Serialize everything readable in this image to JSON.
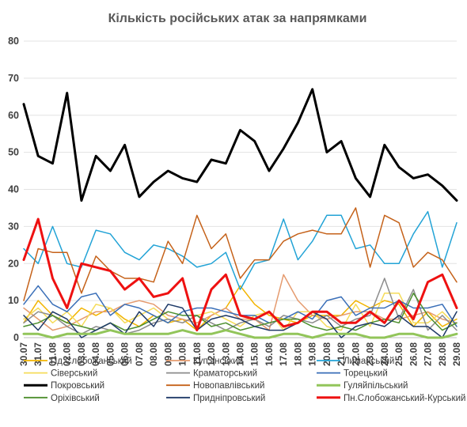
{
  "chart_data": {
    "type": "line",
    "title": "Кількість російських атак за напрямками",
    "xlabel": "",
    "ylabel": "",
    "ylim": [
      0,
      80
    ],
    "yticks": [
      0,
      10,
      20,
      30,
      40,
      50,
      60,
      70,
      80
    ],
    "grid": "horizontal",
    "legend_position": "bottom",
    "x": [
      "30.07",
      "31.07",
      "01.08",
      "02.08",
      "03.08",
      "04.08",
      "05.08",
      "06.08",
      "07.08",
      "08.08",
      "09.08",
      "10.08",
      "11.08",
      "12.08",
      "13.08",
      "14.08",
      "15.08",
      "16.08",
      "17.08",
      "18.08",
      "19.08",
      "20.08",
      "21.08",
      "22.08",
      "23.08",
      "24.08",
      "25.08",
      "26.08",
      "27.08",
      "28.08",
      "29.08"
    ],
    "series": [
      {
        "name": "Пд.Слобожанський",
        "color": "#f2b400",
        "width": 1.5,
        "values": [
          4,
          10,
          6,
          4,
          8,
          6,
          8,
          5,
          3,
          6,
          4,
          5,
          2,
          6,
          8,
          14,
          9,
          6,
          5,
          4,
          6,
          6,
          6,
          10,
          8,
          10,
          9,
          3,
          7,
          3,
          5
        ]
      },
      {
        "name": "Куп'янський",
        "color": "#e59b6f",
        "width": 1.5,
        "values": [
          8,
          5,
          2,
          3,
          5,
          7,
          7,
          9,
          10,
          9,
          6,
          5,
          4,
          6,
          8,
          5,
          5,
          2,
          17,
          10,
          6,
          5,
          6,
          7,
          7,
          5,
          5,
          6,
          7,
          5,
          4
        ]
      },
      {
        "name": "Лиманський",
        "color": "#22a3d6",
        "width": 1.5,
        "values": [
          24,
          20,
          30,
          20,
          19,
          29,
          28,
          23,
          21,
          25,
          24,
          22,
          19,
          20,
          23,
          13,
          20,
          21,
          32,
          21,
          26,
          33,
          33,
          24,
          25,
          20,
          20,
          28,
          34,
          19,
          31
        ]
      },
      {
        "name": "Сіверський",
        "color": "#f5dc5a",
        "width": 1.5,
        "values": [
          5,
          8,
          4,
          7,
          3,
          9,
          8,
          4,
          6,
          8,
          5,
          4,
          6,
          7,
          5,
          3,
          6,
          7,
          2,
          7,
          7,
          3,
          2,
          9,
          3,
          12,
          12,
          4,
          4,
          7,
          3
        ]
      },
      {
        "name": "Краматорський",
        "color": "#8c8c8c",
        "width": 1.5,
        "values": [
          4,
          7,
          6,
          3,
          1,
          3,
          2,
          1,
          2,
          4,
          5,
          4,
          6,
          4,
          2,
          4,
          5,
          3,
          6,
          5,
          4,
          6,
          3,
          5,
          6,
          16,
          5,
          13,
          2,
          6,
          2
        ]
      },
      {
        "name": "Торецький",
        "color": "#3a6fb8",
        "width": 1.5,
        "values": [
          9,
          14,
          9,
          7,
          11,
          12,
          6,
          9,
          8,
          6,
          4,
          7,
          8,
          8,
          7,
          6,
          6,
          4,
          5,
          7,
          5,
          10,
          11,
          6,
          8,
          8,
          10,
          8,
          8,
          9,
          3
        ]
      },
      {
        "name": "Покровський",
        "color": "#000000",
        "width": 3,
        "values": [
          63,
          49,
          47,
          66,
          37,
          49,
          45,
          52,
          38,
          42,
          45,
          43,
          42,
          48,
          47,
          56,
          53,
          45,
          51,
          58,
          67,
          50,
          53,
          43,
          38,
          52,
          46,
          43,
          44,
          41,
          37
        ]
      },
      {
        "name": "Новопавлівський",
        "color": "#c5621a",
        "width": 1.5,
        "values": [
          10,
          24,
          23,
          23,
          12,
          22,
          18,
          16,
          16,
          15,
          26,
          20,
          33,
          24,
          28,
          16,
          21,
          21,
          26,
          28,
          29,
          28,
          28,
          35,
          19,
          33,
          31,
          19,
          23,
          21,
          15
        ]
      },
      {
        "name": "Гуляйпільський",
        "color": "#92c55a",
        "width": 3,
        "values": [
          1,
          1,
          0,
          1,
          1,
          1,
          2,
          1,
          1,
          1,
          1,
          2,
          1,
          1,
          2,
          1,
          0,
          0,
          1,
          1,
          0,
          1,
          1,
          1,
          0,
          0,
          1,
          1,
          0,
          0,
          1
        ]
      },
      {
        "name": "Оріхівський",
        "color": "#4d8f2e",
        "width": 1.5,
        "values": [
          3,
          4,
          6,
          4,
          3,
          2,
          4,
          2,
          3,
          5,
          7,
          6,
          6,
          3,
          4,
          2,
          3,
          4,
          5,
          5,
          3,
          2,
          3,
          2,
          4,
          5,
          4,
          12,
          6,
          2,
          4
        ]
      },
      {
        "name": "Придніпровський",
        "color": "#1f3a68",
        "width": 1.5,
        "values": [
          6,
          2,
          7,
          5,
          0,
          2,
          4,
          1,
          7,
          3,
          9,
          8,
          2,
          5,
          6,
          5,
          3,
          2,
          2,
          4,
          7,
          5,
          0,
          3,
          4,
          3,
          6,
          3,
          3,
          0,
          7
        ]
      },
      {
        "name": "Пн.Слобожанський-Курський",
        "color": "#ee1111",
        "width": 3,
        "values": [
          21,
          32,
          16,
          8,
          20,
          19,
          18,
          13,
          16,
          11,
          12,
          16,
          2,
          13,
          17,
          6,
          5,
          7,
          3,
          4,
          7,
          7,
          4,
          4,
          7,
          4,
          10,
          5,
          15,
          17,
          8
        ]
      }
    ]
  }
}
